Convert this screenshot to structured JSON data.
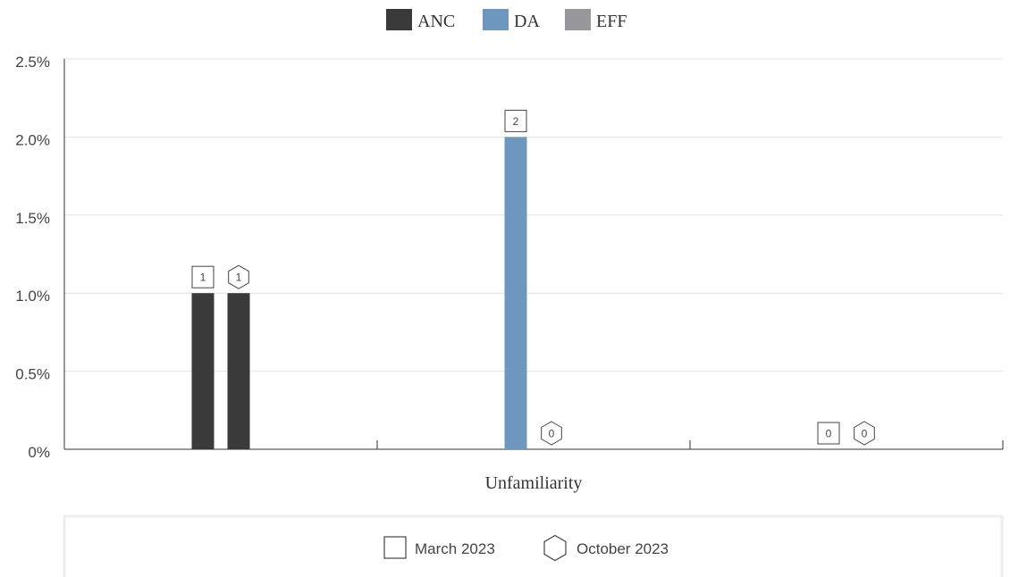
{
  "chart_data": {
    "type": "bar",
    "categories": [
      "ANC",
      "DA",
      "EFF"
    ],
    "xlabel": "Unfamiliarity",
    "ylabel": "",
    "yticks": [
      "0%",
      "0.5%",
      "1.0%",
      "1.5%",
      "2.0%",
      "2.5%"
    ],
    "ylim": [
      0,
      2.5
    ],
    "grid": true,
    "legend_top": [
      {
        "name": "ANC",
        "color": "#3a3a3a"
      },
      {
        "name": "DA",
        "color": "#6e97bf"
      },
      {
        "name": "EFF",
        "color": "#98979a"
      }
    ],
    "legend_bottom": [
      {
        "name": "March 2023",
        "marker": "square"
      },
      {
        "name": "October 2023",
        "marker": "hexagon"
      }
    ],
    "series": [
      {
        "name": "March 2023",
        "marker": "square",
        "values": [
          1,
          2,
          0
        ],
        "labels": [
          "1",
          "2",
          "0"
        ]
      },
      {
        "name": "October 2023",
        "marker": "hexagon",
        "values": [
          1,
          0,
          0
        ],
        "labels": [
          "1",
          "0",
          "0"
        ]
      }
    ]
  }
}
